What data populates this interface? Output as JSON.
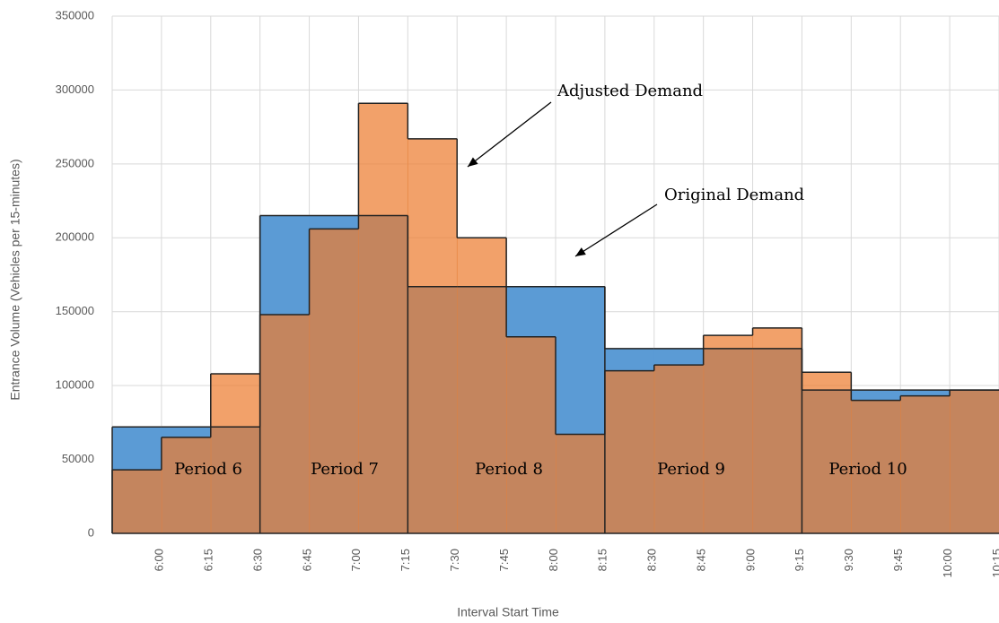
{
  "chart_data": {
    "type": "step-area",
    "xlabel": "Interval Start Time",
    "ylabel": "Entrance Volume (Vehicles per 15-minutes)",
    "categories": [
      "6:00",
      "6:15",
      "6:30",
      "6:45",
      "7:00",
      "7:15",
      "7:30",
      "7:45",
      "8:00",
      "8:15",
      "8:30",
      "8:45",
      "9:00",
      "9:15",
      "9:30",
      "9:45",
      "10:00",
      "10:15"
    ],
    "series": [
      {
        "name": "Original Demand",
        "color": "#5b9bd5",
        "values": [
          72000,
          72000,
          72000,
          215000,
          215000,
          215000,
          167000,
          167000,
          167000,
          167000,
          125000,
          125000,
          125000,
          125000,
          97000,
          97000,
          97000,
          97000
        ]
      },
      {
        "name": "Adjusted Demand",
        "color": "#ed7d31",
        "values": [
          43000,
          65000,
          108000,
          148000,
          206000,
          291000,
          267000,
          200000,
          133000,
          67000,
          110000,
          114000,
          134000,
          139000,
          109000,
          90000,
          93000,
          97000
        ]
      }
    ],
    "annotations": [
      "Adjusted Demand",
      "Original Demand"
    ],
    "period_labels": [
      "Period 6",
      "Period 7",
      "Period 8",
      "Period 9",
      "Period 10"
    ],
    "ylim": [
      0,
      350000
    ],
    "yticks": [
      0,
      50000,
      100000,
      150000,
      200000,
      250000,
      300000,
      350000
    ],
    "grid": true
  }
}
